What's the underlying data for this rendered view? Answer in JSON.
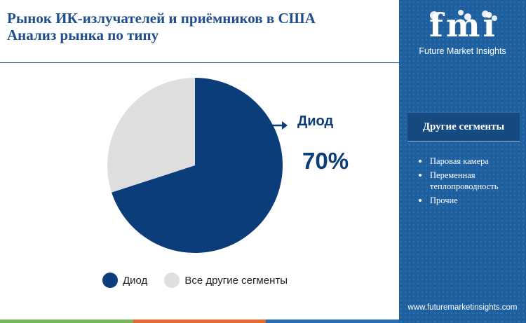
{
  "title": {
    "line1": "Рынок ИК‑излучателей и приёмников в США",
    "line2": "Анализ рынка  по типу"
  },
  "colors": {
    "accent": "#0b3d7a",
    "other": "#dedede",
    "title": "#1f4e8c",
    "panel": "#1e5fa0",
    "bottom_bar": [
      "#7ab55c",
      "#e06a2f",
      "#2a6bb3",
      "#7ab55c"
    ]
  },
  "chart_data": {
    "type": "pie",
    "slices": [
      {
        "name": "Диод",
        "value": 70,
        "color": "#0b3d7a"
      },
      {
        "name": "Все другие сегменты",
        "value": 30,
        "color": "#dedede"
      }
    ],
    "callout": {
      "label": "Диод",
      "value_label": "70%"
    },
    "legend": [
      "Диод",
      "Все другие сегменты"
    ],
    "legend_position": "bottom"
  },
  "sidebar": {
    "logo": "fmi",
    "logo_subtitle": "Future Market Insights",
    "segments_heading": "Другие сегменты",
    "segments": [
      "Паровая камера",
      "Переменная теплопроводность",
      "Прочие"
    ],
    "website": "www.futuremarketinsights.com"
  }
}
